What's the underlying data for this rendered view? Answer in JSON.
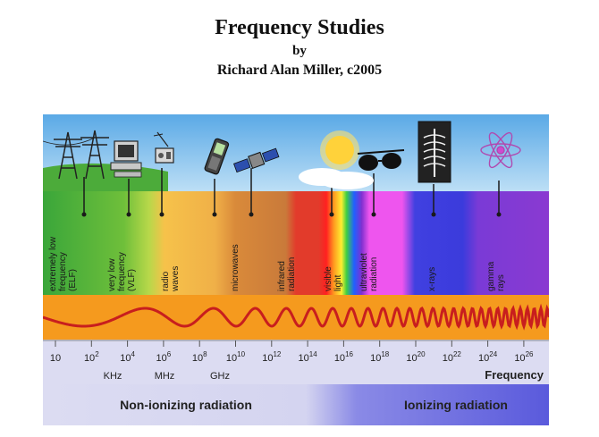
{
  "header": {
    "title": "Frequency Studies",
    "by": "by",
    "author": "Richard Alan Miller, c2005"
  },
  "bands": [
    {
      "lines": [
        "extremely low",
        "frequency",
        "(ELF)"
      ],
      "color": "#3aa63a"
    },
    {
      "lines": [
        "very low",
        "frequency",
        "(VLF)"
      ],
      "color": "#8ccc3a"
    },
    {
      "lines": [
        "radio",
        "waves"
      ],
      "color": "#f3b53d"
    },
    {
      "lines": [
        "microwaves"
      ],
      "color": "#d98a3a"
    },
    {
      "lines": [
        "infrared",
        "radiation"
      ],
      "color": "#e23b2b"
    },
    {
      "lines": [
        "visible",
        "light"
      ],
      "color": "#ffffff"
    },
    {
      "lines": [
        "ultraviolet",
        "radiation"
      ],
      "color": "#ee55ee"
    },
    {
      "lines": [
        "x-rays"
      ],
      "color": "#3b3bdc"
    },
    {
      "lines": [
        "gamma",
        "rays"
      ],
      "color": "#8a3ad1"
    }
  ],
  "icons": [
    "power-line-tower-icon",
    "computer-icon",
    "radio-icon",
    "mobile-phone-icon",
    "satellite-icon",
    "sun-icon",
    "sunglasses-icon",
    "xray-film-icon",
    "atom-icon"
  ],
  "ticks": [
    {
      "base": "10",
      "exp": ""
    },
    {
      "base": "10",
      "exp": "2"
    },
    {
      "base": "10",
      "exp": "4"
    },
    {
      "base": "10",
      "exp": "6"
    },
    {
      "base": "10",
      "exp": "8"
    },
    {
      "base": "10",
      "exp": "10"
    },
    {
      "base": "10",
      "exp": "12"
    },
    {
      "base": "10",
      "exp": "14"
    },
    {
      "base": "10",
      "exp": "16"
    },
    {
      "base": "10",
      "exp": "18"
    },
    {
      "base": "10",
      "exp": "20"
    },
    {
      "base": "10",
      "exp": "22"
    },
    {
      "base": "10",
      "exp": "24"
    },
    {
      "base": "10",
      "exp": "26"
    }
  ],
  "units": [
    "KHz",
    "MHz",
    "GHz"
  ],
  "axis_label": "Frequency",
  "radiation": {
    "non_ionizing": "Non-ionizing radiation",
    "ionizing": "Ionizing radiation"
  },
  "colors": {
    "wave_band": "#f59a1e",
    "wave": "#c81e1e",
    "axis_bg": "#dcdcf2",
    "ionizing_bg": "#6e6ee0"
  }
}
